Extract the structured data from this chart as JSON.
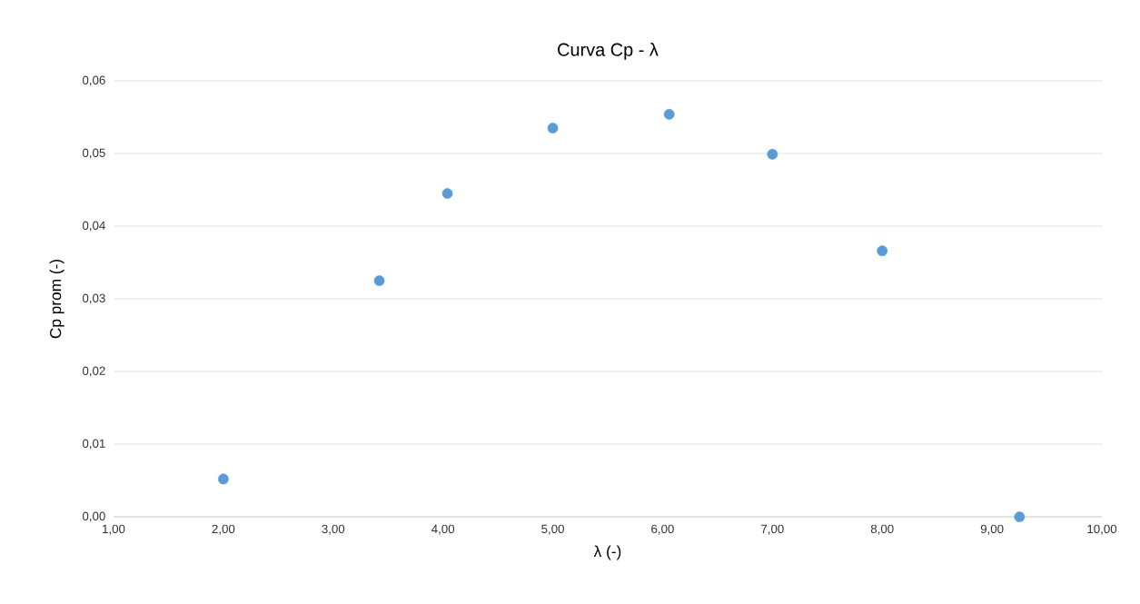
{
  "chart_data": {
    "type": "scatter",
    "title": "Curva Cp - λ",
    "xlabel": "λ (-)",
    "ylabel": "Cp prom (-)",
    "x": [
      2.0,
      3.42,
      4.04,
      5.0,
      6.06,
      7.0,
      8.0,
      9.25
    ],
    "values": [
      0.0052,
      0.0325,
      0.0445,
      0.0535,
      0.0554,
      0.0499,
      0.0366,
      0.0
    ],
    "color": "#5b9bd5",
    "marker": "circle",
    "grid": "y",
    "xlim": [
      1,
      10
    ],
    "ylim": [
      0,
      0.06
    ],
    "xticks": [
      {
        "value": 1,
        "label": "1,00"
      },
      {
        "value": 2,
        "label": "2,00"
      },
      {
        "value": 3,
        "label": "3,00"
      },
      {
        "value": 4,
        "label": "4,00"
      },
      {
        "value": 5,
        "label": "5,00"
      },
      {
        "value": 6,
        "label": "6,00"
      },
      {
        "value": 7,
        "label": "7,00"
      },
      {
        "value": 8,
        "label": "8,00"
      },
      {
        "value": 9,
        "label": "9,00"
      },
      {
        "value": 10,
        "label": "10,00"
      }
    ],
    "yticks": [
      {
        "value": 0,
        "label": "0,00"
      },
      {
        "value": 0.01,
        "label": "0,01"
      },
      {
        "value": 0.02,
        "label": "0,02"
      },
      {
        "value": 0.03,
        "label": "0,03"
      },
      {
        "value": 0.04,
        "label": "0,04"
      },
      {
        "value": 0.05,
        "label": "0,05"
      },
      {
        "value": 0.06,
        "label": "0,06"
      }
    ]
  }
}
